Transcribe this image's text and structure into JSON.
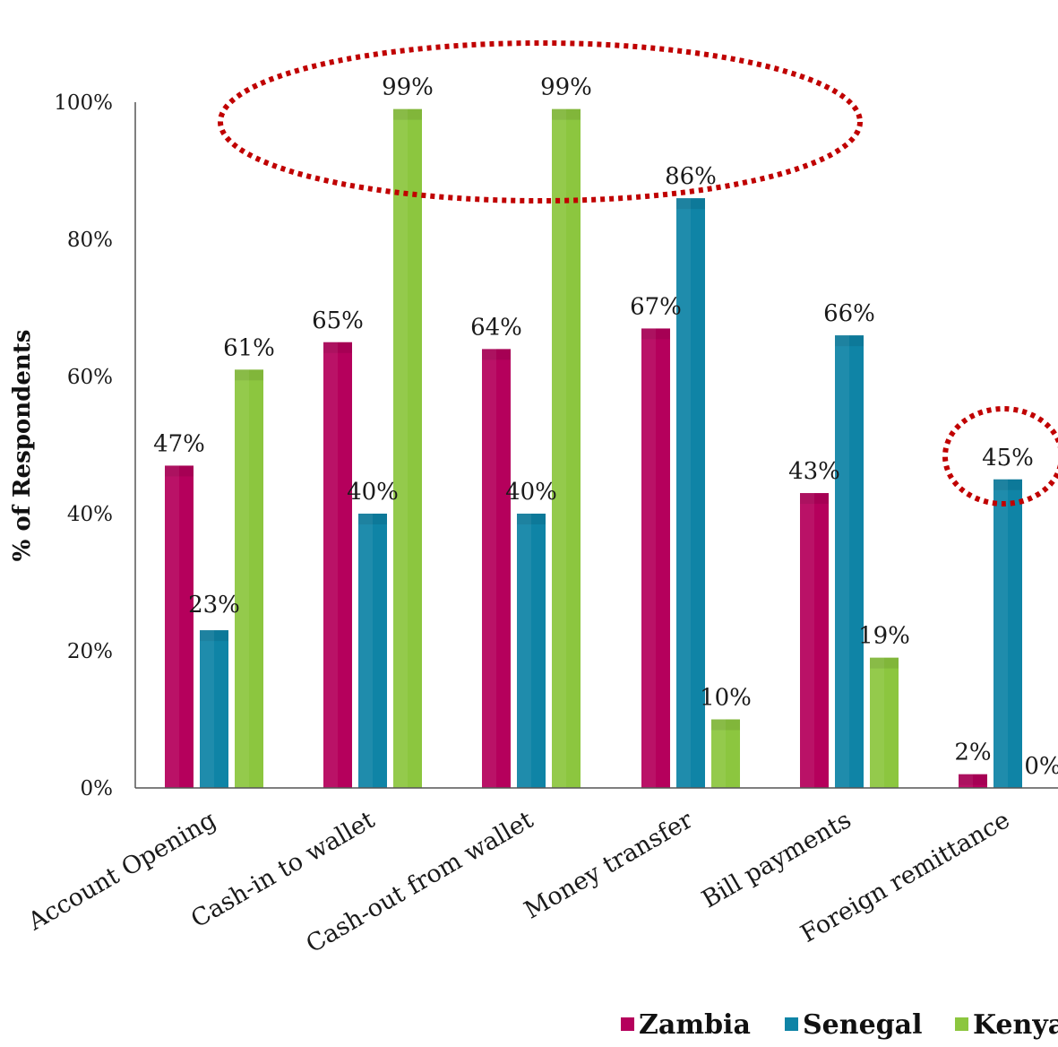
{
  "chart_data": {
    "type": "bar",
    "ylabel": "% of Respondents",
    "ylim": [
      0,
      100
    ],
    "yticks": [
      "0%",
      "20%",
      "40%",
      "60%",
      "80%",
      "100%"
    ],
    "categories": [
      "Account Opening",
      "Cash-in to wallet",
      "Cash-out from wallet",
      "Money transfer",
      "Bill payments",
      "Foreign remittance"
    ],
    "series": [
      {
        "name": "Zambia",
        "color": "#b5005c",
        "values": [
          47,
          65,
          64,
          67,
          43,
          2
        ],
        "labels": [
          "47%",
          "65%",
          "64%",
          "67%",
          "43%",
          "2%"
        ]
      },
      {
        "name": "Senegal",
        "color": "#0f84a6",
        "values": [
          23,
          40,
          40,
          86,
          66,
          45
        ],
        "labels": [
          "23%",
          "40%",
          "40%",
          "86%",
          "66%",
          "45%"
        ]
      },
      {
        "name": "Kenya",
        "color": "#8cc63f",
        "values": [
          61,
          99,
          99,
          10,
          19,
          0
        ],
        "labels": [
          "61%",
          "99%",
          "99%",
          "10%",
          "19%",
          "0%"
        ]
      }
    ],
    "legend": "bottom",
    "grid": false,
    "annotations": [
      {
        "type": "dotted-ellipse",
        "color": "#c00000",
        "highlights": "Kenya 99% cash-in and cash-out"
      },
      {
        "type": "dotted-ellipse",
        "color": "#c00000",
        "highlights": "Senegal 45% foreign remittance"
      }
    ]
  }
}
